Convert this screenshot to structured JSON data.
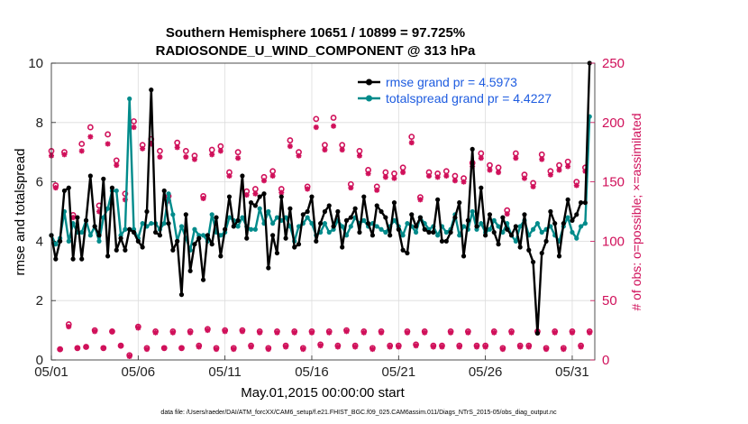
{
  "chart_data": {
    "type": "line",
    "title": "Southern Hemisphere 10651 / 10899 = 97.725%",
    "subtitle": "RADIOSONDE_U_WIND_COMPONENT @ 313 hPa",
    "xlabel": "May.01,2015 00:00:00 start",
    "ylabel": "rmse and totalspread",
    "y2label": "# of obs: o=possible; ×=assimilated",
    "footer": "data file: /Users/raeder/DAI/ATM_forcXX/CAM6_setup/f.e21.FHIST_BGC.f09_025.CAM6assim.011/Diags_NTrS_2015-05/obs_diag_output.nc",
    "xlim": [
      1,
      32.3
    ],
    "ylim": [
      0,
      10
    ],
    "y2lim": [
      0,
      250
    ],
    "xticks": [
      1,
      6,
      11,
      16,
      21,
      26,
      31
    ],
    "xtick_labels": [
      "05/01",
      "05/06",
      "05/11",
      "05/16",
      "05/21",
      "05/26",
      "05/31"
    ],
    "yticks": [
      0,
      2,
      4,
      6,
      8,
      10
    ],
    "ytick_labels": [
      "0",
      "2",
      "4",
      "6",
      "8",
      "10"
    ],
    "y2ticks": [
      0,
      50,
      100,
      150,
      200,
      250
    ],
    "y2tick_labels": [
      "0",
      "50",
      "100",
      "150",
      "200",
      "250"
    ],
    "grid": true,
    "legend_position": "top-right",
    "legend": [
      "rmse grand pr = 4.5973",
      "totalspread grand pr = 4.4227"
    ],
    "series": [
      {
        "name": "rmse grand pr = 4.5973",
        "color": "#000000",
        "axis": "left",
        "x": [
          1.0,
          1.25,
          1.5,
          1.75,
          2.0,
          2.25,
          2.5,
          2.75,
          3.0,
          3.25,
          3.5,
          3.75,
          4.0,
          4.25,
          4.5,
          4.75,
          5.0,
          5.25,
          5.5,
          5.75,
          6.0,
          6.25,
          6.5,
          6.75,
          7.0,
          7.25,
          7.5,
          7.75,
          8.0,
          8.25,
          8.5,
          8.75,
          9.0,
          9.25,
          9.5,
          9.75,
          10.0,
          10.25,
          10.5,
          10.75,
          11.0,
          11.25,
          11.5,
          11.75,
          12.0,
          12.25,
          12.5,
          12.75,
          13.0,
          13.25,
          13.5,
          13.75,
          14.0,
          14.25,
          14.5,
          14.75,
          15.0,
          15.25,
          15.5,
          15.75,
          16.0,
          16.25,
          16.5,
          16.75,
          17.0,
          17.25,
          17.5,
          17.75,
          18.0,
          18.25,
          18.5,
          18.75,
          19.0,
          19.25,
          19.5,
          19.75,
          20.0,
          20.25,
          20.5,
          20.75,
          21.0,
          21.25,
          21.5,
          21.75,
          22.0,
          22.25,
          22.5,
          22.75,
          23.0,
          23.25,
          23.5,
          23.75,
          24.0,
          24.25,
          24.5,
          24.75,
          25.0,
          25.25,
          25.5,
          25.75,
          26.0,
          26.25,
          26.5,
          26.75,
          27.0,
          27.25,
          27.5,
          27.75,
          28.0,
          28.25,
          28.5,
          28.75,
          29.0,
          29.25,
          29.5,
          29.75,
          30.0,
          30.25,
          30.5,
          30.75,
          31.0,
          31.25,
          31.5,
          31.75,
          32.0
        ],
        "values": [
          4.2,
          3.4,
          4.0,
          5.7,
          5.8,
          3.4,
          4.8,
          3.4,
          4.7,
          6.2,
          4.5,
          4.2,
          6.1,
          3.5,
          5.8,
          3.7,
          4.1,
          3.7,
          4.4,
          4.3,
          4.0,
          3.8,
          5.0,
          9.1,
          4.3,
          4.2,
          5.7,
          4.6,
          3.7,
          4.0,
          2.2,
          4.9,
          3.0,
          3.9,
          4.1,
          2.7,
          4.2,
          3.9,
          4.8,
          3.5,
          4.4,
          5.5,
          4.5,
          4.7,
          6.2,
          4.1,
          5.3,
          5.2,
          5.5,
          5.6,
          3.1,
          4.2,
          3.6,
          5.5,
          4.1,
          5.1,
          3.8,
          3.9,
          4.9,
          5.0,
          5.5,
          4.0,
          4.6,
          5.0,
          5.2,
          4.5,
          5.0,
          3.8,
          4.7,
          4.8,
          5.1,
          4.3,
          5.5,
          4.6,
          4.2,
          5.2,
          5.0,
          4.8,
          4.2,
          5.3,
          4.4,
          3.7,
          3.6,
          4.9,
          4.5,
          4.8,
          4.4,
          4.3,
          4.3,
          5.4,
          4.0,
          4.0,
          4.3,
          4.8,
          5.3,
          3.5,
          4.7,
          7.1,
          4.5,
          5.8,
          4.2,
          4.9,
          4.3,
          3.9,
          4.8,
          4.4,
          4.2,
          4.5,
          3.8,
          4.9,
          3.7,
          3.3,
          0.9,
          3.6,
          4.0,
          5.0,
          4.6,
          3.5,
          4.6,
          5.4,
          4.7,
          4.9,
          5.3,
          5.3,
          10.0
        ]
      },
      {
        "name": "totalspread grand pr = 4.4227",
        "color": "#008b8b",
        "axis": "left",
        "x": [
          1.0,
          1.25,
          1.5,
          1.75,
          2.0,
          2.25,
          2.5,
          2.75,
          3.0,
          3.25,
          3.5,
          3.75,
          4.0,
          4.25,
          4.5,
          4.75,
          5.0,
          5.25,
          5.5,
          5.75,
          6.0,
          6.25,
          6.5,
          6.75,
          7.0,
          7.25,
          7.5,
          7.75,
          8.0,
          8.25,
          8.5,
          8.75,
          9.0,
          9.25,
          9.5,
          9.75,
          10.0,
          10.25,
          10.5,
          10.75,
          11.0,
          11.25,
          11.5,
          11.75,
          12.0,
          12.25,
          12.5,
          12.75,
          13.0,
          13.25,
          13.5,
          13.75,
          14.0,
          14.25,
          14.5,
          14.75,
          15.0,
          15.25,
          15.5,
          15.75,
          16.0,
          16.25,
          16.5,
          16.75,
          17.0,
          17.25,
          17.5,
          17.75,
          18.0,
          18.25,
          18.5,
          18.75,
          19.0,
          19.25,
          19.5,
          19.75,
          20.0,
          20.25,
          20.5,
          20.75,
          21.0,
          21.25,
          21.5,
          21.75,
          22.0,
          22.25,
          22.5,
          22.75,
          23.0,
          23.25,
          23.5,
          23.75,
          24.0,
          24.25,
          24.5,
          24.75,
          25.0,
          25.25,
          25.5,
          25.75,
          26.0,
          26.25,
          26.5,
          26.75,
          27.0,
          27.25,
          27.5,
          27.75,
          28.0,
          28.25,
          28.5,
          28.75,
          29.0,
          29.25,
          29.5,
          29.75,
          30.0,
          30.25,
          30.5,
          30.75,
          31.0,
          31.25,
          31.5,
          31.75,
          32.0
        ],
        "values": [
          4.2,
          3.9,
          4.1,
          5.0,
          4.0,
          4.6,
          4.3,
          4.3,
          4.7,
          4.2,
          4.5,
          4.0,
          4.8,
          5.1,
          5.7,
          5.7,
          4.2,
          4.4,
          8.8,
          4.4,
          4.1,
          4.6,
          4.5,
          4.6,
          4.6,
          4.4,
          4.6,
          5.6,
          4.9,
          4.0,
          4.5,
          4.1,
          3.7,
          4.4,
          4.2,
          4.2,
          4.0,
          4.9,
          4.3,
          4.2,
          4.3,
          4.8,
          4.7,
          4.5,
          4.8,
          4.5,
          4.4,
          4.4,
          5.1,
          4.6,
          5.0,
          4.6,
          4.8,
          4.7,
          4.8,
          4.5,
          4.0,
          4.5,
          4.6,
          4.8,
          4.6,
          4.2,
          4.3,
          4.6,
          4.3,
          4.4,
          4.7,
          4.5,
          4.2,
          4.5,
          4.8,
          4.6,
          4.7,
          4.5,
          4.6,
          4.5,
          4.4,
          4.3,
          4.5,
          4.7,
          4.5,
          4.2,
          4.6,
          4.5,
          4.3,
          4.8,
          4.6,
          4.4,
          4.5,
          4.2,
          4.5,
          4.3,
          4.4,
          4.9,
          4.2,
          4.5,
          4.4,
          5.0,
          4.4,
          4.6,
          4.3,
          4.4,
          4.7,
          4.5,
          4.3,
          4.6,
          4.2,
          4.0,
          4.5,
          4.7,
          4.2,
          4.4,
          4.6,
          4.3,
          4.4,
          4.5,
          4.2,
          4.0,
          4.5,
          4.8,
          4.3,
          4.1,
          4.5,
          4.6,
          8.2
        ]
      }
    ],
    "obs_possible": {
      "marker": "o",
      "color": "#d0105a",
      "axis": "right",
      "x": [
        1.0,
        1.25,
        1.5,
        1.75,
        2.0,
        2.25,
        2.5,
        2.75,
        3.0,
        3.25,
        3.5,
        3.75,
        4.0,
        4.25,
        4.5,
        4.75,
        5.0,
        5.25,
        5.5,
        5.75,
        6.0,
        6.25,
        6.5,
        6.75,
        7.0,
        7.25,
        7.5,
        7.75,
        8.0,
        8.25,
        8.5,
        8.75,
        9.0,
        9.25,
        9.5,
        9.75,
        10.0,
        10.25,
        10.5,
        10.75,
        11.0,
        11.25,
        11.5,
        11.75,
        12.0,
        12.25,
        12.5,
        12.75,
        13.0,
        13.25,
        13.5,
        13.75,
        14.0,
        14.25,
        14.5,
        14.75,
        15.0,
        15.25,
        15.5,
        15.75,
        16.0,
        16.25,
        16.5,
        16.75,
        17.0,
        17.25,
        17.5,
        17.75,
        18.0,
        18.25,
        18.5,
        18.75,
        19.0,
        19.25,
        19.5,
        19.75,
        20.0,
        20.25,
        20.5,
        20.75,
        21.0,
        21.25,
        21.5,
        21.75,
        22.0,
        22.25,
        22.5,
        22.75,
        23.0,
        23.25,
        23.5,
        23.75,
        24.0,
        24.25,
        24.5,
        24.75,
        25.0,
        25.25,
        25.5,
        25.75,
        26.0,
        26.25,
        26.5,
        26.75,
        27.0,
        27.25,
        27.5,
        27.75,
        28.0,
        28.25,
        28.5,
        28.75,
        29.0,
        29.25,
        29.5,
        29.75,
        30.0,
        30.25,
        30.5,
        30.75,
        31.0,
        31.25,
        31.5,
        31.75,
        32.0
      ],
      "values": [
        176,
        147,
        9,
        175,
        30,
        122,
        10,
        182,
        11,
        196,
        25,
        130,
        10,
        190,
        24,
        168,
        12,
        140,
        4,
        201,
        28,
        181,
        10,
        186,
        24,
        176,
        10,
        138,
        24,
        183,
        10,
        176,
        24,
        172,
        12,
        138,
        26,
        177,
        10,
        180,
        25,
        158,
        10,
        175,
        25,
        142,
        12,
        144,
        24,
        154,
        10,
        159,
        24,
        144,
        12,
        185,
        24,
        175,
        10,
        146,
        24,
        203,
        13,
        181,
        24,
        204,
        12,
        181,
        25,
        148,
        12,
        176,
        24,
        160,
        10,
        146,
        24,
        158,
        12,
        157,
        12,
        162,
        24,
        188,
        13,
        137,
        24,
        158,
        12,
        157,
        12,
        159,
        24,
        155,
        12,
        153,
        24,
        166,
        12,
        174,
        12,
        164,
        24,
        162,
        10,
        126,
        24,
        174,
        12,
        156,
        12,
        149,
        24,
        173,
        10,
        159,
        24,
        164,
        10,
        167,
        24,
        150,
        12,
        162,
        24
      ]
    },
    "obs_assimilated": {
      "marker": "*",
      "color": "#d0105a",
      "axis": "right",
      "x": [
        1.0,
        1.25,
        1.5,
        1.75,
        2.0,
        2.25,
        2.5,
        2.75,
        3.0,
        3.25,
        3.5,
        3.75,
        4.0,
        4.25,
        4.5,
        4.75,
        5.0,
        5.25,
        5.5,
        5.75,
        6.0,
        6.25,
        6.5,
        6.75,
        7.0,
        7.25,
        7.5,
        7.75,
        8.0,
        8.25,
        8.5,
        8.75,
        9.0,
        9.25,
        9.5,
        9.75,
        10.0,
        10.25,
        10.5,
        10.75,
        11.0,
        11.25,
        11.5,
        11.75,
        12.0,
        12.25,
        12.5,
        12.75,
        13.0,
        13.25,
        13.5,
        13.75,
        14.0,
        14.25,
        14.5,
        14.75,
        15.0,
        15.25,
        15.5,
        15.75,
        16.0,
        16.25,
        16.5,
        16.75,
        17.0,
        17.25,
        17.5,
        17.75,
        18.0,
        18.25,
        18.5,
        18.75,
        19.0,
        19.25,
        19.5,
        19.75,
        20.0,
        20.25,
        20.5,
        20.75,
        21.0,
        21.25,
        21.5,
        21.75,
        22.0,
        22.25,
        22.5,
        22.75,
        23.0,
        23.25,
        23.5,
        23.75,
        24.0,
        24.25,
        24.5,
        24.75,
        25.0,
        25.25,
        25.5,
        25.75,
        26.0,
        26.25,
        26.5,
        26.75,
        27.0,
        27.25,
        27.5,
        27.75,
        28.0,
        28.25,
        28.5,
        28.75,
        29.0,
        29.25,
        29.5,
        29.75,
        30.0,
        30.25,
        30.5,
        30.75,
        31.0,
        31.25,
        31.5,
        31.75,
        32.0
      ],
      "values": [
        172,
        145,
        9,
        173,
        28,
        120,
        10,
        176,
        11,
        188,
        24,
        125,
        10,
        182,
        24,
        164,
        12,
        135,
        3,
        196,
        27,
        178,
        9,
        182,
        23,
        171,
        10,
        134,
        23,
        179,
        10,
        171,
        23,
        169,
        11,
        136,
        25,
        173,
        9,
        176,
        24,
        155,
        9,
        170,
        24,
        139,
        11,
        140,
        23,
        151,
        9,
        155,
        23,
        141,
        11,
        180,
        23,
        172,
        9,
        144,
        23,
        196,
        12,
        177,
        23,
        197,
        11,
        177,
        24,
        145,
        11,
        172,
        23,
        157,
        9,
        143,
        23,
        154,
        11,
        153,
        11,
        158,
        23,
        183,
        12,
        135,
        23,
        155,
        11,
        154,
        11,
        155,
        23,
        151,
        11,
        150,
        23,
        163,
        11,
        170,
        11,
        160,
        23,
        158,
        9,
        123,
        23,
        170,
        11,
        153,
        11,
        146,
        23,
        169,
        9,
        156,
        23,
        160,
        9,
        163,
        23,
        147,
        11,
        159,
        23
      ]
    }
  }
}
